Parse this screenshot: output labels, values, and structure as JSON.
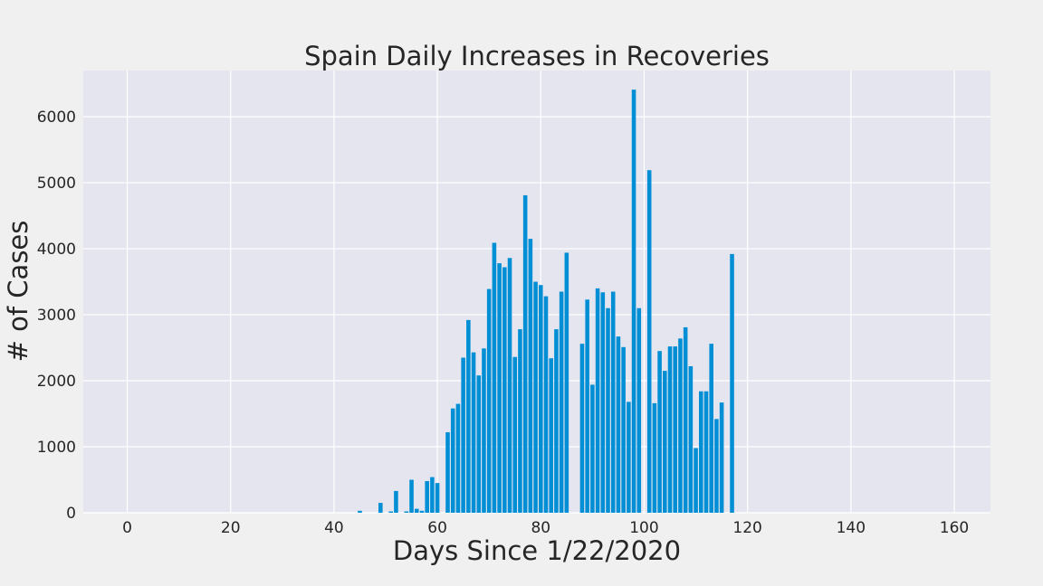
{
  "chart_data": {
    "type": "bar",
    "title": "Spain Daily Increases in Recoveries",
    "xlabel": "Days Since 1/22/2020",
    "ylabel": "# of Cases",
    "xlim": [
      -8.5,
      167
    ],
    "ylim": [
      0,
      6700
    ],
    "xticks": [
      0,
      20,
      40,
      60,
      80,
      100,
      120,
      140,
      160
    ],
    "yticks": [
      0,
      1000,
      2000,
      3000,
      4000,
      5000,
      6000
    ],
    "grid": true,
    "colors": {
      "bar": "#008fd5",
      "plot_bg": "#e5e5f0",
      "figure_bg": "#f0f0f0",
      "grid": "#ffffff"
    },
    "x": [
      45,
      49,
      51,
      52,
      54,
      55,
      56,
      57,
      58,
      59,
      60,
      61,
      62,
      63,
      64,
      65,
      66,
      67,
      68,
      69,
      70,
      71,
      72,
      73,
      74,
      75,
      76,
      77,
      78,
      79,
      80,
      81,
      82,
      83,
      84,
      85,
      88,
      89,
      90,
      91,
      92,
      93,
      94,
      95,
      96,
      97,
      98,
      99,
      101,
      102,
      103,
      104,
      105,
      106,
      107,
      108,
      109,
      110,
      111,
      112,
      113,
      114,
      115,
      116,
      117
    ],
    "values": [
      30,
      150,
      20,
      330,
      20,
      500,
      60,
      30,
      480,
      540,
      450,
      0,
      1220,
      1580,
      1650,
      2350,
      2920,
      2430,
      2080,
      2490,
      3390,
      4090,
      3780,
      3720,
      3860,
      2360,
      2780,
      4810,
      4150,
      3500,
      3450,
      3280,
      2340,
      2780,
      3350,
      3940,
      2560,
      3230,
      1940,
      3400,
      3340,
      3100,
      3350,
      2670,
      2510,
      1680,
      6410,
      3100,
      5190,
      1660,
      2450,
      2150,
      2520,
      2520,
      2640,
      2810,
      2220,
      980,
      1840,
      1840,
      2560,
      1420,
      1670,
      0,
      3920
    ]
  }
}
